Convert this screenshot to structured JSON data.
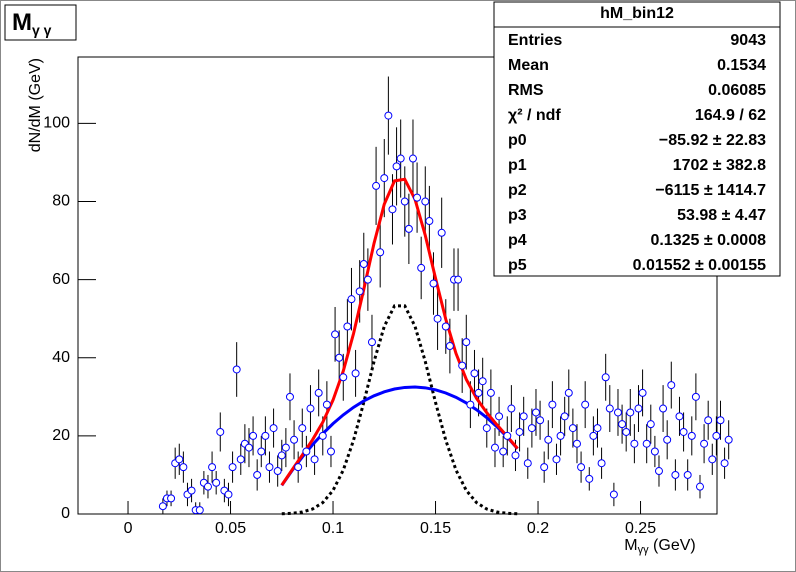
{
  "chart_data": {
    "type": "errorbar",
    "title": {
      "main": "M",
      "sub": "γ γ"
    },
    "x_label": {
      "main": "M",
      "sub": "γγ",
      "rest": " (GeV)"
    },
    "y_label": "dN/dM (GeV)",
    "xlim": [
      -0.0244,
      0.2873
    ],
    "ylim": [
      0,
      117
    ],
    "xticks": [
      0,
      0.05,
      0.1,
      0.15,
      0.2,
      0.25
    ],
    "yticks": [
      0,
      20,
      40,
      60,
      80,
      100
    ],
    "marker_color": "#0000ff",
    "x": [
      0.017,
      0.019,
      0.021,
      0.023,
      0.025,
      0.027,
      0.029,
      0.031,
      0.033,
      0.035,
      0.037,
      0.039,
      0.041,
      0.043,
      0.045,
      0.047,
      0.049,
      0.051,
      0.053,
      0.055,
      0.057,
      0.059,
      0.061,
      0.063,
      0.065,
      0.067,
      0.069,
      0.071,
      0.073,
      0.075,
      0.077,
      0.079,
      0.081,
      0.083,
      0.085,
      0.087,
      0.089,
      0.091,
      0.093,
      0.095,
      0.097,
      0.099,
      0.101,
      0.103,
      0.105,
      0.107,
      0.109,
      0.111,
      0.113,
      0.115,
      0.117,
      0.119,
      0.121,
      0.123,
      0.125,
      0.127,
      0.129,
      0.131,
      0.133,
      0.135,
      0.137,
      0.139,
      0.141,
      0.143,
      0.145,
      0.147,
      0.149,
      0.151,
      0.153,
      0.155,
      0.157,
      0.159,
      0.161,
      0.163,
      0.165,
      0.167,
      0.169,
      0.171,
      0.173,
      0.175,
      0.177,
      0.179,
      0.181,
      0.183,
      0.185,
      0.187,
      0.189,
      0.191,
      0.193,
      0.195,
      0.197,
      0.199,
      0.201,
      0.203,
      0.205,
      0.207,
      0.209,
      0.211,
      0.213,
      0.215,
      0.217,
      0.219,
      0.221,
      0.223,
      0.225,
      0.227,
      0.229,
      0.231,
      0.233,
      0.235,
      0.237,
      0.239,
      0.241,
      0.243,
      0.245,
      0.247,
      0.249,
      0.251,
      0.253,
      0.255,
      0.257,
      0.259,
      0.261,
      0.263,
      0.265,
      0.267,
      0.269,
      0.271,
      0.273,
      0.275,
      0.277,
      0.279,
      0.281,
      0.283,
      0.285,
      0.287,
      0.289,
      0.291,
      0.293
    ],
    "values": [
      2,
      4,
      4,
      13,
      14,
      12,
      5,
      6,
      1,
      1,
      8,
      7,
      12,
      8,
      21,
      6,
      5,
      12,
      37,
      14,
      18,
      17,
      20,
      10,
      16,
      20,
      12,
      22,
      11,
      15,
      17,
      30,
      19,
      12,
      22,
      16,
      27,
      14,
      31,
      20,
      28,
      16,
      46,
      40,
      35,
      48,
      55,
      36,
      57,
      64,
      60,
      44,
      84,
      67,
      86,
      102,
      78,
      89,
      91,
      80,
      73,
      91,
      81,
      63,
      80,
      75,
      59,
      50,
      72,
      48,
      43,
      60,
      60,
      38,
      44,
      28,
      36,
      31,
      34,
      22,
      31,
      17,
      25,
      16,
      20,
      27,
      15,
      21,
      25,
      13,
      22,
      26,
      24,
      12,
      19,
      28,
      14,
      20,
      25,
      31,
      22,
      18,
      12,
      28,
      9,
      20,
      22,
      13,
      35,
      27,
      5,
      26,
      23,
      21,
      26,
      18,
      27,
      31,
      18,
      23,
      16,
      11,
      27,
      19,
      33,
      10,
      25,
      21,
      10,
      20,
      30,
      7,
      18,
      24,
      14,
      20,
      24,
      13,
      19
    ],
    "errors": [
      2,
      2,
      2,
      4,
      4,
      4,
      3,
      3,
      2,
      2,
      3,
      3,
      4,
      3,
      5,
      3,
      3,
      4,
      7,
      4,
      5,
      5,
      5,
      4,
      4,
      5,
      4,
      5,
      4,
      4,
      5,
      6,
      5,
      4,
      5,
      4,
      6,
      4,
      6,
      5,
      6,
      4,
      7,
      7,
      6,
      7,
      8,
      6,
      8,
      8,
      8,
      7,
      10,
      9,
      10,
      10,
      9,
      10,
      10,
      9,
      9,
      10,
      9,
      8,
      9,
      9,
      8,
      8,
      9,
      7,
      7,
      8,
      8,
      7,
      7,
      6,
      6,
      6,
      6,
      5,
      6,
      5,
      5,
      4,
      5,
      6,
      4,
      5,
      5,
      4,
      5,
      6,
      5,
      4,
      5,
      6,
      4,
      5,
      5,
      6,
      5,
      5,
      4,
      6,
      3,
      5,
      5,
      4,
      6,
      6,
      3,
      6,
      5,
      5,
      6,
      5,
      6,
      6,
      5,
      5,
      4,
      4,
      6,
      5,
      6,
      4,
      5,
      5,
      4,
      5,
      6,
      3,
      5,
      5,
      4,
      5,
      5,
      4,
      5
    ],
    "fit_x": [
      0.075,
      0.08,
      0.085,
      0.09,
      0.095,
      0.1,
      0.105,
      0.11,
      0.115,
      0.12,
      0.125,
      0.13,
      0.135,
      0.14,
      0.145,
      0.15,
      0.155,
      0.16,
      0.165,
      0.17,
      0.175,
      0.18,
      0.185,
      0.19
    ],
    "fits": [
      {
        "color": "#000000",
        "style": "dotted",
        "values": [
          0.06,
          0.18,
          0.5,
          1.27,
          2.92,
          6.04,
          11.23,
          18.87,
          28.57,
          39.03,
          48.04,
          53.29,
          53.29,
          48.04,
          39.03,
          28.57,
          18.87,
          11.23,
          6.04,
          2.92,
          1.27,
          0.5,
          0.18,
          0.06
        ]
      },
      {
        "color": "#0000ff",
        "style": "solid",
        "values": [
          7.33,
          11.1,
          14.57,
          17.73,
          20.58,
          23.13,
          25.37,
          27.31,
          28.94,
          30.26,
          31.28,
          32.0,
          32.4,
          32.51,
          32.3,
          31.79,
          30.98,
          29.86,
          28.43,
          26.7,
          24.66,
          22.31,
          19.66,
          16.71
        ]
      },
      {
        "color": "#ff0000",
        "style": "solid",
        "values": [
          7.39,
          11.28,
          15.07,
          19.0,
          23.5,
          29.17,
          36.6,
          46.18,
          57.51,
          69.29,
          79.32,
          85.29,
          85.69,
          80.55,
          71.33,
          60.36,
          49.85,
          41.09,
          34.47,
          29.62,
          25.93,
          22.81,
          19.84,
          16.77
        ]
      }
    ],
    "stats_box": {
      "title": "hM_bin12",
      "rows": [
        [
          "Entries",
          "9043"
        ],
        [
          "Mean",
          "0.1534"
        ],
        [
          "RMS",
          "0.06085"
        ],
        [
          "χ² / ndf",
          "164.9 / 62"
        ],
        [
          "p0",
          "−85.92 ± 22.83"
        ],
        [
          "p1",
          "1702 ± 382.8"
        ],
        [
          "p2",
          "−6115 ± 1414.7"
        ],
        [
          "p3",
          "53.98 ± 4.47"
        ],
        [
          "p4",
          "0.1325 ± 0.0008"
        ],
        [
          "p5",
          "0.01552 ± 0.00155"
        ]
      ]
    }
  }
}
